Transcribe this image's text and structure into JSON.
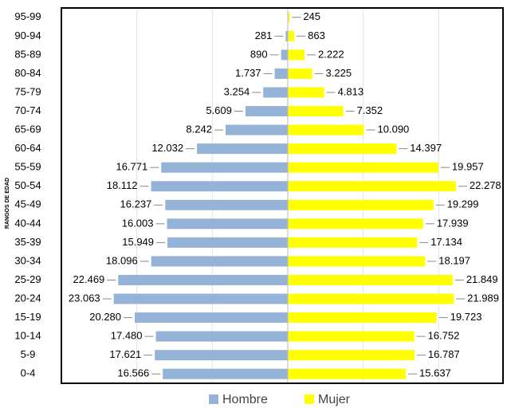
{
  "chart_data": {
    "type": "pyramid",
    "y_label": "RANGOS DE EDAD",
    "categories": [
      "95-99",
      "90-94",
      "85-89",
      "80-84",
      "75-79",
      "70-74",
      "65-69",
      "60-64",
      "55-59",
      "50-54",
      "45-49",
      "40-44",
      "35-39",
      "30-34",
      "25-29",
      "20-24",
      "15-19",
      "10-14",
      "5-9",
      "0-4"
    ],
    "series": [
      {
        "name": "Hombre",
        "color": "#95b3d7",
        "values": [
          null,
          281,
          890,
          1737,
          3254,
          5609,
          8242,
          12032,
          16771,
          18112,
          16237,
          16003,
          15949,
          18096,
          22469,
          23063,
          20280,
          17480,
          17621,
          16566
        ],
        "value_labels": [
          null,
          "281",
          "890",
          "1.737",
          "3.254",
          "5.609",
          "8.242",
          "12.032",
          "16.771",
          "18.112",
          "16.237",
          "16.003",
          "15.949",
          "18.096",
          "22.469",
          "23.063",
          "20.280",
          "17.480",
          "17.621",
          "16.566"
        ]
      },
      {
        "name": "Mujer",
        "color": "#ffff00",
        "values": [
          245,
          863,
          2222,
          3225,
          4813,
          7352,
          10090,
          14397,
          19957,
          22278,
          19299,
          17939,
          17134,
          18197,
          21849,
          21989,
          19723,
          16752,
          16787,
          15637
        ],
        "value_labels": [
          "245",
          "863",
          "2.222",
          "3.225",
          "4.813",
          "7.352",
          "10.090",
          "14.397",
          "19.957",
          "22.278",
          "19.299",
          "17.939",
          "17.134",
          "18.197",
          "21.849",
          "21.989",
          "19.723",
          "16.752",
          "16.787",
          "15.637"
        ]
      }
    ],
    "xlim": [
      -30000,
      30000
    ],
    "xticks": [
      -30000,
      -20000,
      -10000,
      0,
      10000,
      20000,
      30000
    ],
    "grid": true,
    "legend": "bottom"
  }
}
